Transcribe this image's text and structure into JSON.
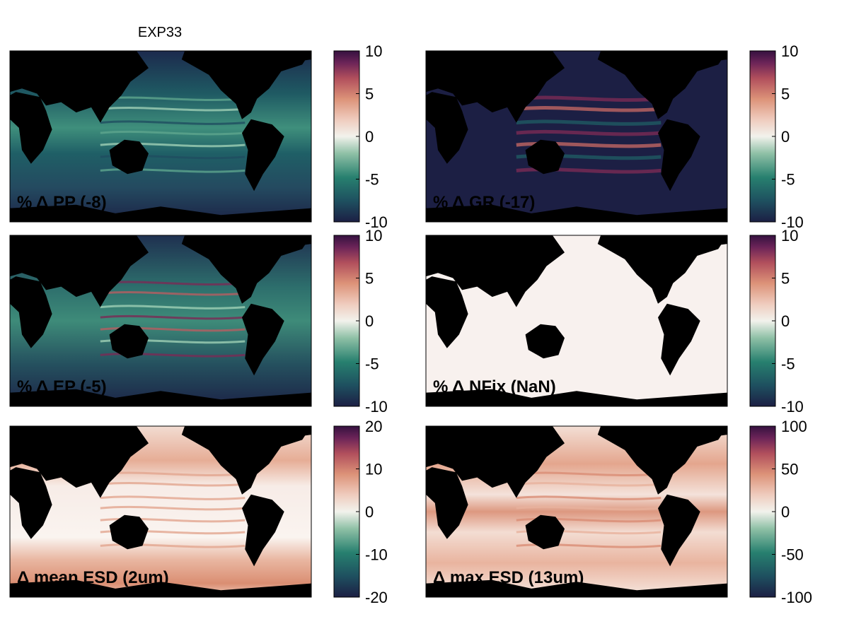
{
  "title": "EXP33",
  "colors": {
    "land": "#000000",
    "background": "#ffffff",
    "cmap": [
      "#1c1f44",
      "#1e4f5f",
      "#27806f",
      "#7fb59c",
      "#eef3ee",
      "#f3ddd3",
      "#dc9278",
      "#b14f5c",
      "#6c2458",
      "#35113f"
    ]
  },
  "panels": [
    {
      "id": "pp",
      "label": "% Δ PP (-8)",
      "ticks": [
        "10",
        "5",
        "0",
        "-5",
        "-10"
      ],
      "field": "dark-teal",
      "mean_change": "-8"
    },
    {
      "id": "gr",
      "label": "% Δ GR (-17)",
      "ticks": [
        "10",
        "5",
        "0",
        "-5",
        "-10"
      ],
      "field": "dark-navy",
      "mean_change": "-17"
    },
    {
      "id": "ep",
      "label": "% Δ EP (-5)",
      "ticks": [
        "10",
        "5",
        "0",
        "-5",
        "-10"
      ],
      "field": "mixed",
      "mean_change": "-5"
    },
    {
      "id": "nfix",
      "label": "% Δ NFix (NaN)",
      "ticks": [
        "10",
        "5",
        "0",
        "-5",
        "-10"
      ],
      "field": "near-zero",
      "mean_change": "NaN"
    },
    {
      "id": "mesd",
      "label": "Δ mean ESD (2um)",
      "ticks": [
        "20",
        "10",
        "0",
        "-10",
        "-20"
      ],
      "field": "light-warm",
      "mean_change": "2um"
    },
    {
      "id": "xesd",
      "label": "Δ max ESD (13um)",
      "ticks": [
        "100",
        "50",
        "0",
        "-50",
        "-100"
      ],
      "field": "warm",
      "mean_change": "13um"
    }
  ]
}
